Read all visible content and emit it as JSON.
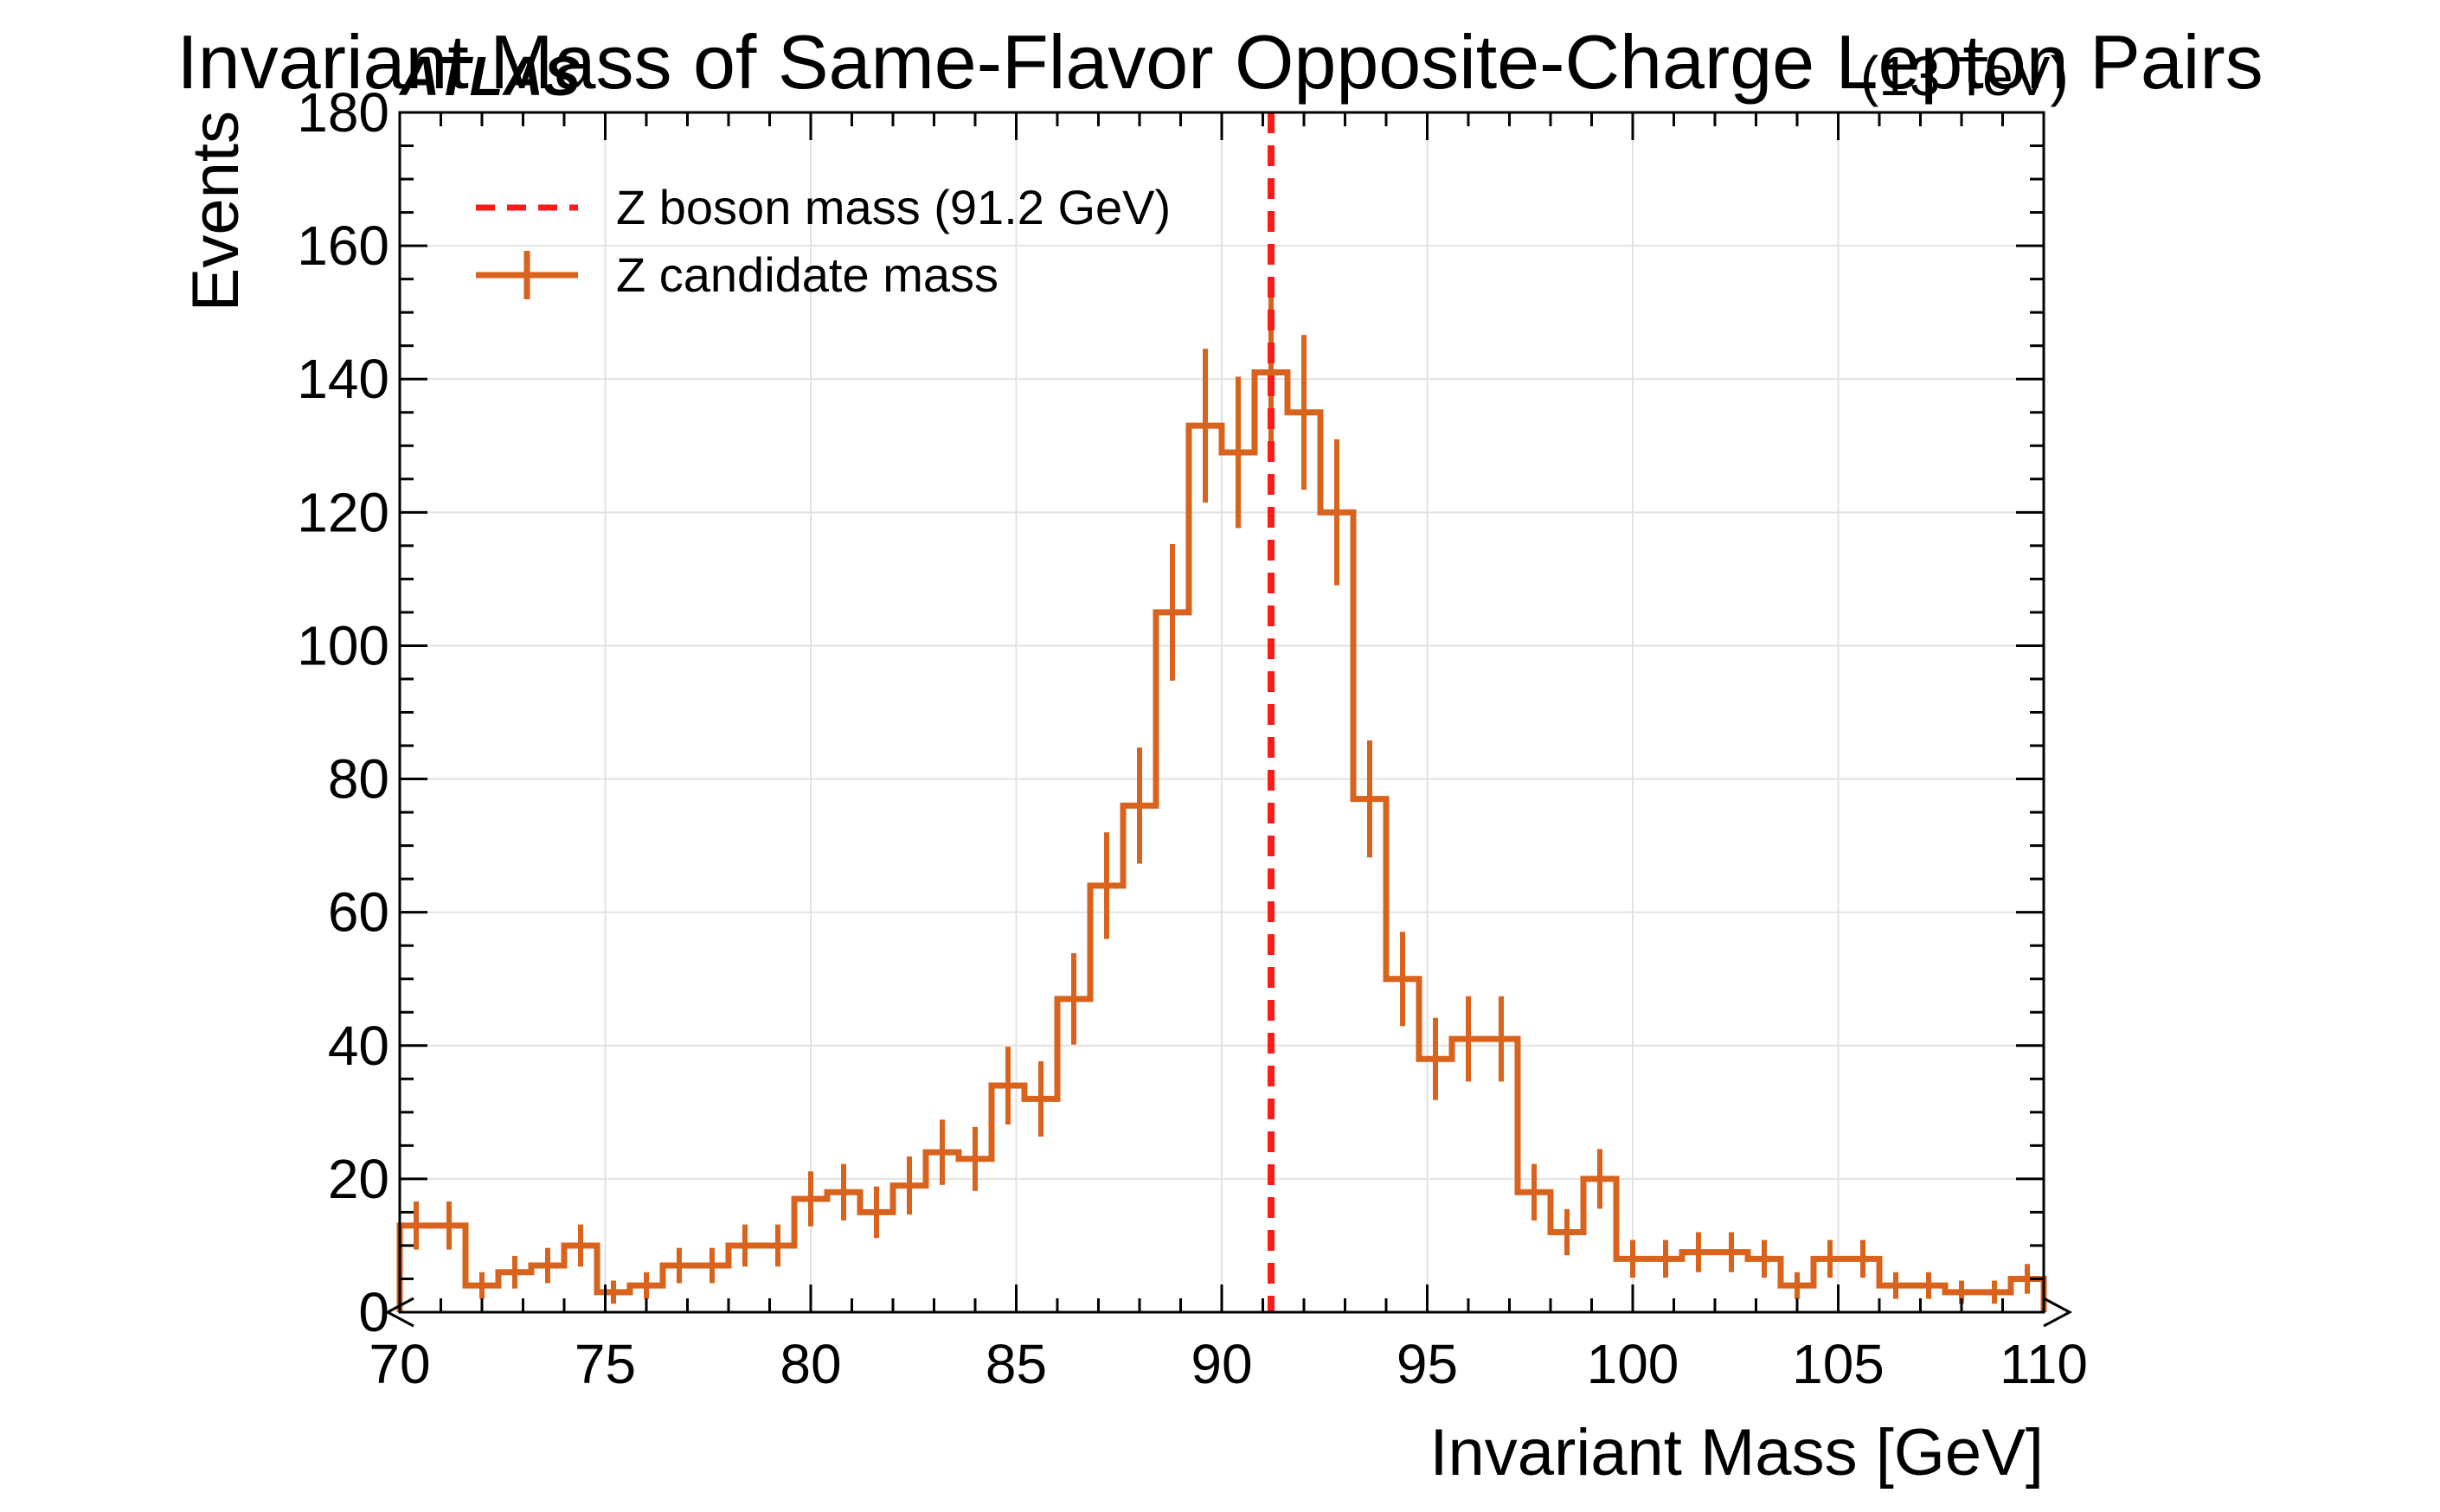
{
  "chart_data": {
    "type": "line",
    "title": "Invariant Mass of Same-Flavor Opposite-Charge Lepton Pairs",
    "experiment_label": "ATLAS",
    "energy_label": "(13 TeV)",
    "xlabel": "Invariant Mass [GeV]",
    "ylabel": "Events",
    "xlim": [
      70,
      110
    ],
    "ylim": [
      0,
      180
    ],
    "x_ticks": [
      70,
      75,
      80,
      85,
      90,
      95,
      100,
      105,
      110
    ],
    "y_ticks": [
      0,
      20,
      40,
      60,
      80,
      100,
      120,
      140,
      160,
      180
    ],
    "grid": true,
    "legend_placement": "top-left",
    "bin_width": 0.8,
    "bin_edges_start": 70,
    "series": [
      {
        "name": "Z candidate mass",
        "style": "step-with-errorbars",
        "color": "#d9621c",
        "values": [
          13,
          13,
          4,
          6,
          7,
          10,
          3,
          4,
          7,
          7,
          10,
          10,
          17,
          18,
          15,
          19,
          24,
          23,
          34,
          32,
          47,
          64,
          76,
          105,
          133,
          129,
          141,
          135,
          120,
          77,
          50,
          38,
          41,
          41,
          18,
          12,
          20,
          8,
          8,
          9,
          9,
          8,
          4,
          8,
          8,
          4,
          4,
          3,
          3,
          5
        ]
      }
    ],
    "reference_line": {
      "name": "Z boson mass (91.2 GeV)",
      "x": 91.2,
      "color": "#ff1a1a",
      "style": "dashed"
    }
  }
}
